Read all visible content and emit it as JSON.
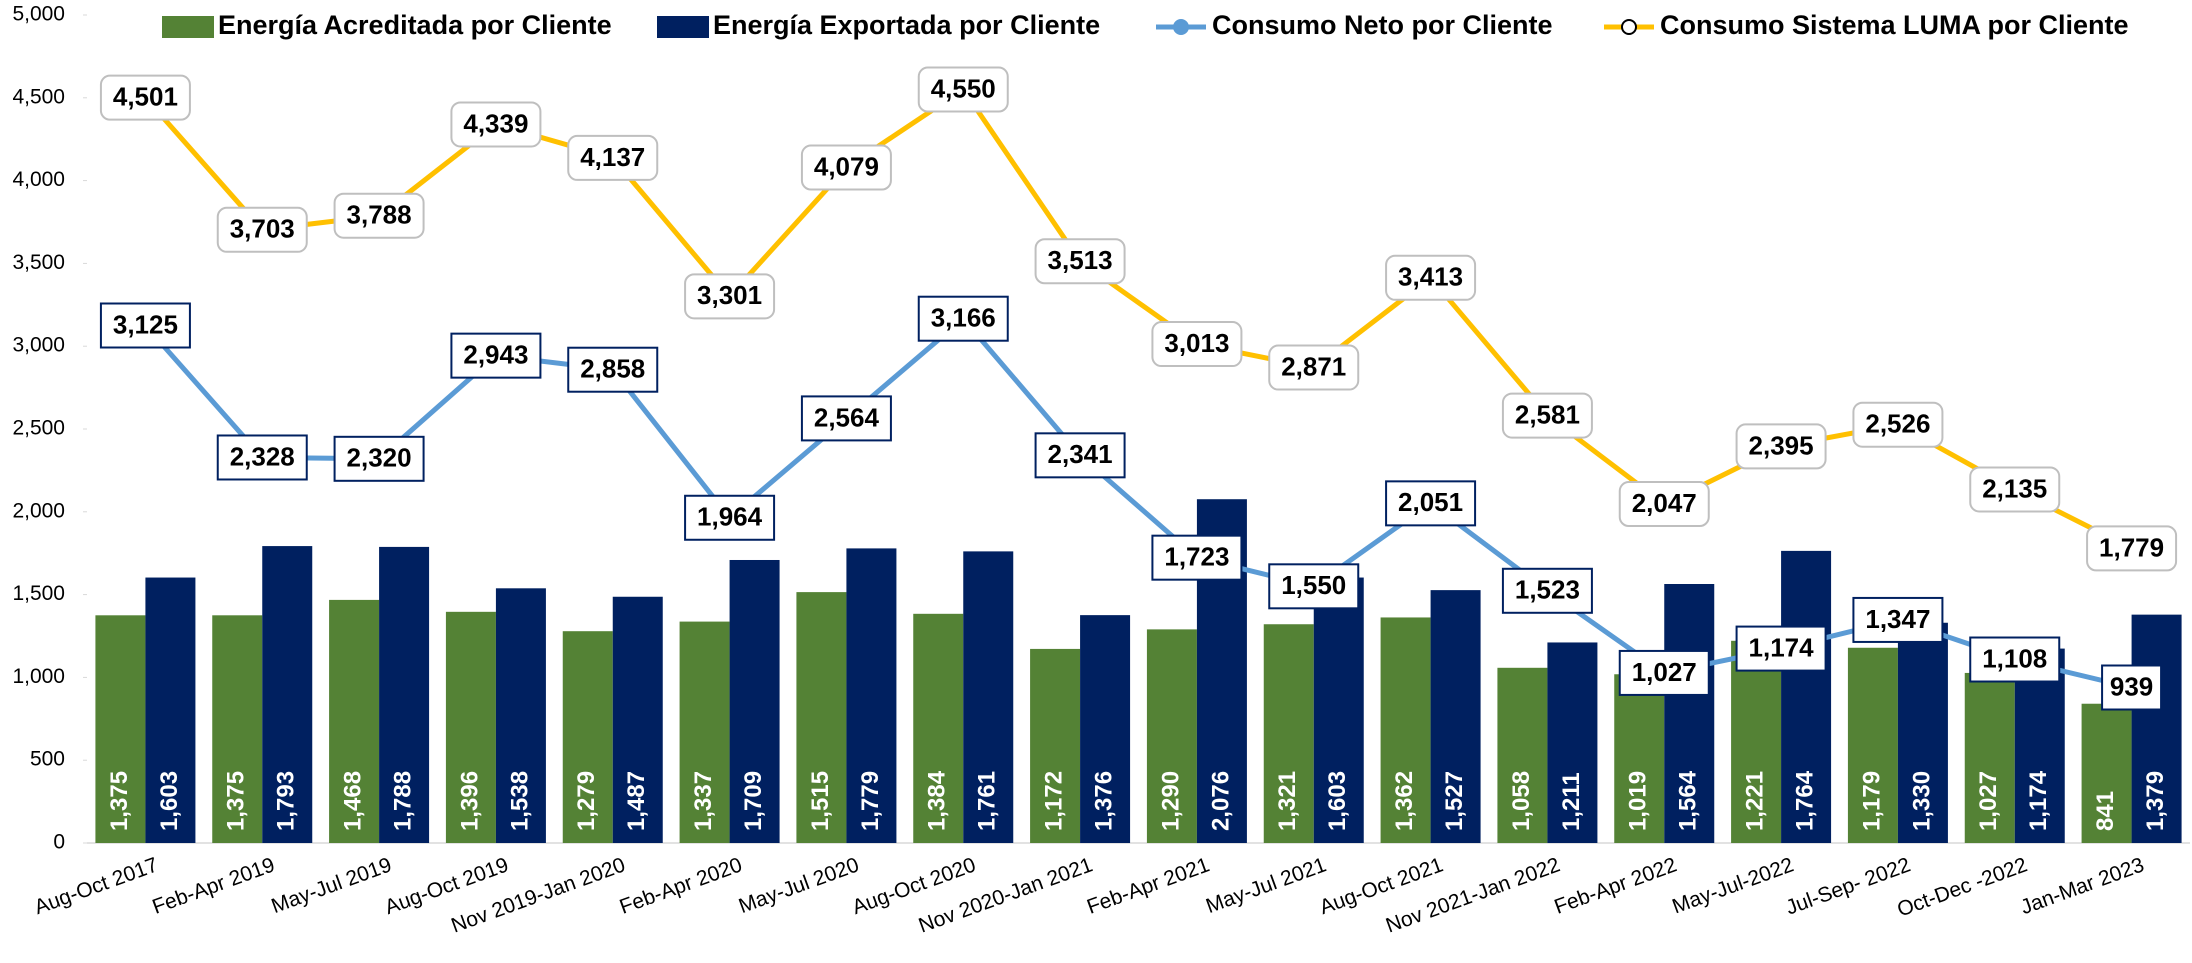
{
  "chart_data": {
    "type": "combo",
    "categories": [
      "Aug-Oct 2017",
      "Feb-Apr 2019",
      "May-Jul 2019",
      "Aug-Oct 2019",
      "Nov 2019-Jan 2020",
      "Feb-Apr 2020",
      "May-Jul 2020",
      "Aug-Oct 2020",
      "Nov 2020-Jan 2021",
      "Feb-Apr 2021",
      "May-Jul 2021",
      "Aug-Oct 2021",
      "Nov 2021-Jan 2022",
      "Feb-Apr 2022",
      "May-Jul-2022",
      "Jul-Sep- 2022",
      "Oct-Dec -2022",
      "Jan-Mar 2023"
    ],
    "series": [
      {
        "name": "Energía Acreditada por Cliente",
        "type": "bar",
        "color": "#548235",
        "values": [
          1375,
          1375,
          1468,
          1396,
          1279,
          1337,
          1515,
          1384,
          1172,
          1290,
          1321,
          1362,
          1058,
          1019,
          1221,
          1179,
          1027,
          841
        ],
        "value_labels": [
          "1,375",
          "1,375",
          "1,468",
          "1,396",
          "1,279",
          "1,337",
          "1,515",
          "1,384",
          "1,172",
          "1,290",
          "1,321",
          "1,362",
          "1,058",
          "1,019",
          "1,221",
          "1,179",
          "1,027",
          "841"
        ]
      },
      {
        "name": "Energía Exportada por Cliente",
        "type": "bar",
        "color": "#002060",
        "values": [
          1603,
          1793,
          1788,
          1538,
          1487,
          1709,
          1779,
          1761,
          1376,
          2076,
          1603,
          1527,
          1211,
          1564,
          1764,
          1330,
          1174,
          1379
        ],
        "value_labels": [
          "1,603",
          "1,793",
          "1,788",
          "1,538",
          "1,487",
          "1,709",
          "1,779",
          "1,761",
          "1,376",
          "2,076",
          "1,603",
          "1,527",
          "1,211",
          "1,564",
          "1,764",
          "1,330",
          "1,174",
          "1,379"
        ]
      },
      {
        "name": "Consumo Neto por Cliente",
        "type": "line",
        "color": "#5b9bd5",
        "marker_color": "#5b9bd5",
        "label_border": "#002060",
        "values": [
          3125,
          2328,
          2320,
          2943,
          2858,
          1964,
          2564,
          3166,
          2341,
          1723,
          1550,
          2051,
          1523,
          1027,
          1174,
          1347,
          1108,
          939
        ],
        "value_labels": [
          "3,125",
          "2,328",
          "2,320",
          "2,943",
          "2,858",
          "1,964",
          "2,564",
          "3,166",
          "2,341",
          "1,723",
          "1,550",
          "2,051",
          "1,523",
          "1,027",
          "1,174",
          "1,347",
          "1,108",
          "939"
        ]
      },
      {
        "name": "Consumo Sistema LUMA por Cliente",
        "type": "line",
        "color": "#ffc000",
        "marker_color": "#ffffff",
        "label_border": "#bfbfbf",
        "values": [
          4501,
          3703,
          3788,
          4339,
          4137,
          3301,
          4079,
          4550,
          3513,
          3013,
          2871,
          3413,
          2581,
          2047,
          2395,
          2526,
          2135,
          1779
        ],
        "value_labels": [
          "4,501",
          "3,703",
          "3,788",
          "4,339",
          "4,137",
          "3,301",
          "4,079",
          "4,550",
          "3,513",
          "3,013",
          "2,871",
          "3,413",
          "2,581",
          "2,047",
          "2,395",
          "2,526",
          "2,135",
          "1,779"
        ]
      }
    ],
    "ylim": [
      0,
      5000
    ],
    "yticks": [
      0,
      500,
      {
        "value": 1000,
        "label": "1,000"
      },
      {
        "value": 1500,
        "label": "1,500"
      },
      {
        "value": 2000,
        "label": "2,000"
      },
      {
        "value": 2500,
        "label": "2,500"
      },
      {
        "value": 3000,
        "label": "3,000"
      },
      {
        "value": 3500,
        "label": "3,500"
      },
      {
        "value": 4000,
        "label": "4,000"
      },
      {
        "value": 4500,
        "label": "4,500"
      },
      {
        "value": 5000,
        "label": "5,000"
      }
    ],
    "legend": "top"
  }
}
